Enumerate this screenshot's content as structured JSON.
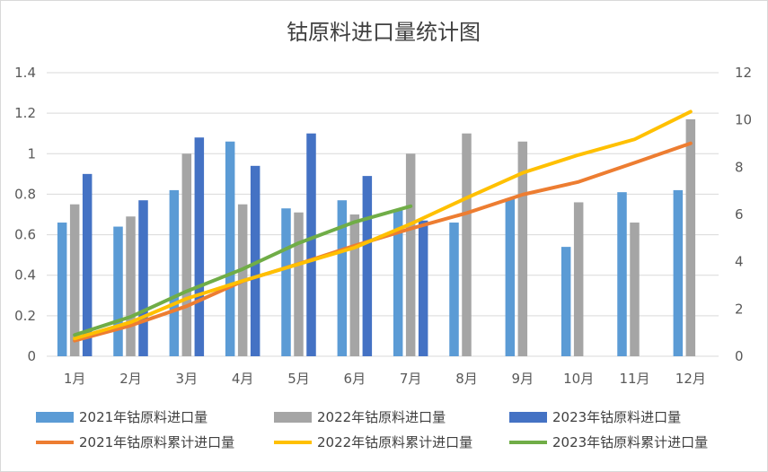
{
  "chart_data": {
    "type": "bar",
    "title": "钴原料进口量统计图",
    "categories": [
      "1月",
      "2月",
      "3月",
      "4月",
      "5月",
      "6月",
      "7月",
      "8月",
      "9月",
      "10月",
      "11月",
      "12月"
    ],
    "y_left": {
      "range": [
        0,
        1.4
      ],
      "ticks": [
        "0",
        "0.2",
        "0.4",
        "0.6",
        "0.8",
        "1",
        "1.2",
        "1.4"
      ]
    },
    "y_right": {
      "range": [
        0,
        12
      ],
      "ticks": [
        "0",
        "2",
        "4",
        "6",
        "8",
        "10",
        "12"
      ]
    },
    "grid": true,
    "legend_position": "bottom",
    "series": [
      {
        "name": "2021年钴原料进口量",
        "type": "bar",
        "axis": "left",
        "color": "#5B9BD5",
        "values": [
          0.66,
          0.64,
          0.82,
          1.06,
          0.73,
          0.77,
          0.72,
          0.66,
          0.78,
          0.54,
          0.81,
          0.82
        ]
      },
      {
        "name": "2022年钴原料进口量",
        "type": "bar",
        "axis": "left",
        "color": "#A5A5A5",
        "values": [
          0.75,
          0.69,
          1.0,
          0.75,
          0.71,
          0.7,
          1.0,
          1.1,
          1.06,
          0.76,
          0.66,
          1.17
        ]
      },
      {
        "name": "2023年钴原料进口量",
        "type": "bar",
        "axis": "left",
        "color": "#4472C4",
        "values": [
          0.9,
          0.77,
          1.08,
          0.94,
          1.1,
          0.89,
          0.67,
          null,
          null,
          null,
          null,
          null
        ]
      },
      {
        "name": "2021年钴原料累计进口量",
        "type": "line",
        "axis": "right",
        "color": "#ED7D31",
        "values": [
          0.66,
          1.3,
          2.12,
          3.18,
          3.91,
          4.68,
          5.4,
          6.06,
          6.84,
          7.38,
          8.19,
          9.01
        ]
      },
      {
        "name": "2022年钴原料累计进口量",
        "type": "line",
        "axis": "right",
        "color": "#FFC000",
        "values": [
          0.75,
          1.44,
          2.44,
          3.19,
          3.9,
          4.6,
          5.6,
          6.7,
          7.76,
          8.52,
          9.18,
          10.35
        ]
      },
      {
        "name": "2023年钴原料累计进口量",
        "type": "line",
        "axis": "right",
        "color": "#70AD47",
        "values": [
          0.9,
          1.67,
          2.75,
          3.69,
          4.79,
          5.68,
          6.35,
          null,
          null,
          null,
          null,
          null
        ]
      }
    ]
  }
}
